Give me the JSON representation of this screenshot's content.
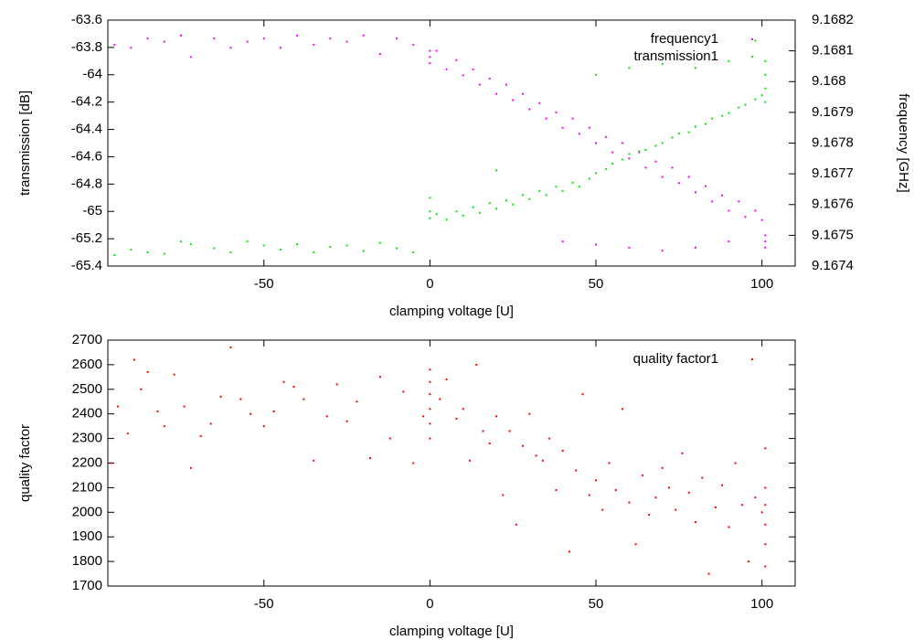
{
  "chart_data": [
    {
      "type": "scatter",
      "xlabel": "clamping voltage [U]",
      "ylabel": "transmission [dB]",
      "y2label": "frequency [GHz]",
      "xlim": [
        -97,
        110
      ],
      "xticks": [
        -50,
        0,
        50,
        100
      ],
      "ylim": [
        -65.4,
        -63.6
      ],
      "yticks": [
        -65.4,
        -65.2,
        -65,
        -64.8,
        -64.6,
        -64.4,
        -64.2,
        -64,
        -63.8,
        -63.6
      ],
      "y2lim": [
        9.1674,
        9.1682
      ],
      "y2ticks": [
        9.1674,
        9.1675,
        9.1676,
        9.1677,
        9.1678,
        9.1679,
        9.168,
        9.1681,
        9.1682
      ],
      "series": [
        {
          "name": "frequency1",
          "color": "#ff00ff",
          "axis": "y2",
          "x": [
            -95,
            -90,
            -85,
            -80,
            -75,
            -72,
            -65,
            -60,
            -55,
            -50,
            -45,
            -40,
            -35,
            -30,
            -25,
            -20,
            -15,
            -10,
            -5,
            0,
            0,
            0,
            2,
            5,
            8,
            10,
            13,
            15,
            18,
            20,
            23,
            25,
            28,
            30,
            33,
            35,
            38,
            40,
            43,
            45,
            48,
            50,
            53,
            55,
            58,
            60,
            63,
            65,
            68,
            70,
            73,
            75,
            78,
            80,
            83,
            85,
            88,
            90,
            93,
            95,
            98,
            100,
            101,
            101,
            101,
            40,
            50,
            60,
            70,
            80,
            90
          ],
          "values": [
            9.16812,
            9.16811,
            9.16814,
            9.16813,
            9.16815,
            9.16808,
            9.16814,
            9.16811,
            9.16813,
            9.16814,
            9.16811,
            9.16815,
            9.16812,
            9.16814,
            9.16813,
            9.16815,
            9.16809,
            9.16814,
            9.16812,
            9.1681,
            9.16808,
            9.16806,
            9.1681,
            9.16804,
            9.16807,
            9.16802,
            9.16804,
            9.16799,
            9.16801,
            9.16796,
            9.16799,
            9.16794,
            9.16796,
            9.16791,
            9.16793,
            9.16788,
            9.1679,
            9.16785,
            9.16788,
            9.16783,
            9.16785,
            9.1678,
            9.16782,
            9.16777,
            9.1678,
            9.16775,
            9.16777,
            9.16772,
            9.16774,
            9.16769,
            9.16772,
            9.16767,
            9.16769,
            9.16764,
            9.16766,
            9.16761,
            9.16763,
            9.16758,
            9.16761,
            9.16756,
            9.16758,
            9.16755,
            9.1675,
            9.16748,
            9.16746,
            9.16748,
            9.16747,
            9.16746,
            9.16745,
            9.16746,
            9.16748
          ]
        },
        {
          "name": "transmission1",
          "color": "#00ee00",
          "axis": "y",
          "x": [
            -95,
            -90,
            -85,
            -80,
            -75,
            -72,
            -65,
            -60,
            -55,
            -50,
            -45,
            -40,
            -35,
            -30,
            -25,
            -20,
            -15,
            -10,
            -5,
            0,
            0,
            0,
            2,
            5,
            8,
            10,
            13,
            15,
            18,
            20,
            23,
            25,
            28,
            30,
            33,
            35,
            38,
            40,
            43,
            45,
            48,
            50,
            53,
            55,
            58,
            60,
            63,
            65,
            68,
            70,
            73,
            75,
            78,
            80,
            83,
            85,
            88,
            90,
            93,
            95,
            98,
            100,
            101,
            101,
            101,
            101,
            20,
            50,
            60,
            70,
            80,
            90,
            98
          ],
          "values": [
            -65.32,
            -65.28,
            -65.3,
            -65.31,
            -65.22,
            -65.24,
            -65.27,
            -65.3,
            -65.22,
            -65.25,
            -65.28,
            -65.24,
            -65.3,
            -65.26,
            -65.25,
            -65.29,
            -65.23,
            -65.27,
            -65.3,
            -64.9,
            -65,
            -65.05,
            -65.02,
            -65.06,
            -65,
            -65.03,
            -64.97,
            -65.01,
            -64.94,
            -64.98,
            -64.92,
            -64.95,
            -64.88,
            -64.91,
            -64.85,
            -64.88,
            -64.82,
            -64.85,
            -64.79,
            -64.82,
            -64.76,
            -64.72,
            -64.69,
            -64.65,
            -64.62,
            -64.58,
            -64.56,
            -64.55,
            -64.52,
            -64.5,
            -64.46,
            -64.43,
            -64.42,
            -64.38,
            -64.36,
            -64.32,
            -64.3,
            -64.28,
            -64.24,
            -64.22,
            -64.18,
            -64.15,
            -63.9,
            -64,
            -64.1,
            -64.2,
            -64.7,
            -64,
            -63.95,
            -63.92,
            -63.95,
            -63.9,
            -63.75
          ]
        }
      ]
    },
    {
      "type": "scatter",
      "xlabel": "clamping voltage [U]",
      "ylabel": "quality factor",
      "xlim": [
        -97,
        110
      ],
      "xticks": [
        -50,
        0,
        50,
        100
      ],
      "ylim": [
        1700,
        2700
      ],
      "yticks": [
        1700,
        1800,
        1900,
        2000,
        2100,
        2200,
        2300,
        2400,
        2500,
        2600,
        2700
      ],
      "series": [
        {
          "name": "quality factor1",
          "color": "#ff0000",
          "axis": "y",
          "x": [
            -96,
            -94,
            -91,
            -89,
            -87,
            -85,
            -82,
            -80,
            -77,
            -74,
            -72,
            -69,
            -66,
            -63,
            -60,
            -57,
            -54,
            -50,
            -47,
            -44,
            -41,
            -38,
            -35,
            -31,
            -28,
            -25,
            -22,
            -18,
            -15,
            -12,
            -8,
            -5,
            -2,
            0,
            0,
            0,
            0,
            0,
            0,
            3,
            5,
            8,
            10,
            12,
            14,
            16,
            18,
            20,
            22,
            24,
            26,
            28,
            30,
            32,
            34,
            36,
            38,
            40,
            42,
            44,
            46,
            48,
            50,
            52,
            54,
            56,
            58,
            60,
            62,
            64,
            66,
            68,
            70,
            72,
            74,
            76,
            78,
            80,
            82,
            84,
            86,
            88,
            90,
            92,
            94,
            96,
            98,
            100,
            101,
            101,
            101,
            101,
            101,
            101
          ],
          "values": [
            2200,
            2430,
            2320,
            2620,
            2500,
            2570,
            2410,
            2350,
            2560,
            2430,
            2180,
            2310,
            2360,
            2470,
            2670,
            2460,
            2400,
            2350,
            2410,
            2530,
            2510,
            2460,
            2210,
            2390,
            2520,
            2370,
            2450,
            2220,
            2550,
            2300,
            2490,
            2200,
            2390,
            2580,
            2530,
            2480,
            2420,
            2360,
            2300,
            2460,
            2540,
            2380,
            2420,
            2210,
            2600,
            2330,
            2280,
            2390,
            2070,
            2330,
            1950,
            2270,
            2400,
            2230,
            2210,
            2300,
            2090,
            2250,
            1840,
            2170,
            2480,
            2070,
            2130,
            2010,
            2200,
            2090,
            2420,
            2040,
            1870,
            2150,
            1990,
            2060,
            2180,
            2100,
            2010,
            2240,
            2080,
            1960,
            2140,
            1750,
            2020,
            2110,
            1940,
            2200,
            2030,
            1800,
            2060,
            2000,
            2260,
            2100,
            2030,
            1950,
            1870,
            1780
          ]
        }
      ]
    }
  ]
}
